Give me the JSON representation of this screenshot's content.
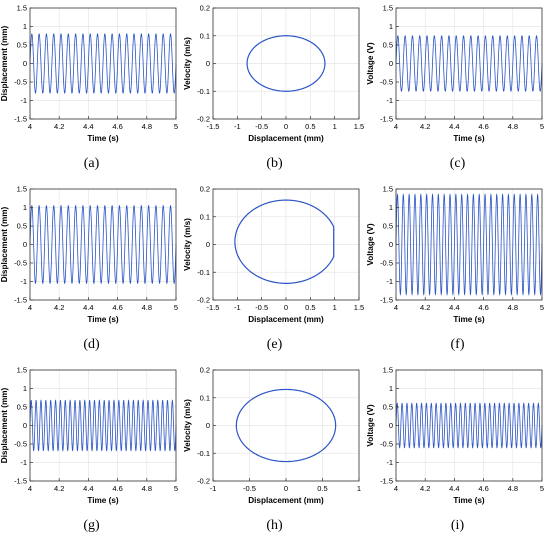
{
  "colors": {
    "line": "#2b55c6",
    "grid": "#e6e6e6",
    "axis": "#333333"
  },
  "chart_data": [
    {
      "panel": "a",
      "caption": "(a)",
      "type": "line",
      "title": "",
      "xlabel": "Time (s)",
      "ylabel": "Displacement (mm)",
      "xlim": [
        4,
        5
      ],
      "ylim": [
        -1.5,
        1.5
      ],
      "xticks": [
        4,
        4.2,
        4.4,
        4.6,
        4.8,
        5
      ],
      "xtick_labels": [
        "4",
        "4.2",
        "4.4",
        "4.6",
        "4.8",
        "5"
      ],
      "yticks": [
        -1.5,
        -1,
        -0.5,
        0,
        0.5,
        1,
        1.5
      ],
      "ytick_labels": [
        "-1.5",
        "-1",
        "-0.5",
        "0",
        "0.5",
        "1",
        "1.5"
      ],
      "grid": true,
      "series": [
        {
          "kind": "sine",
          "amplitude": 0.8,
          "cycles": 20
        }
      ]
    },
    {
      "panel": "b",
      "caption": "(b)",
      "type": "line",
      "title": "",
      "xlabel": "Displacement (mm)",
      "ylabel": "Velocity (m/s)",
      "xlim": [
        -1.5,
        1.5
      ],
      "ylim": [
        -0.2,
        0.2
      ],
      "xticks": [
        -1.5,
        -1,
        -0.5,
        0,
        0.5,
        1,
        1.5
      ],
      "xtick_labels": [
        "-1.5",
        "-1",
        "-0.5",
        "0",
        "0.5",
        "1",
        "1.5"
      ],
      "yticks": [
        -0.2,
        -0.1,
        0,
        0.1,
        0.2
      ],
      "ytick_labels": [
        "-0.2",
        "-0.1",
        "0",
        "0.1",
        "0.2"
      ],
      "grid": true,
      "series": [
        {
          "kind": "orbit",
          "x_amplitude": 0.8,
          "y_amplitude": 0.1
        }
      ]
    },
    {
      "panel": "c",
      "caption": "(c)",
      "type": "line",
      "title": "",
      "xlabel": "Time (s)",
      "ylabel": "Voltage (V)",
      "xlim": [
        4,
        5
      ],
      "ylim": [
        -1.5,
        1.5
      ],
      "xticks": [
        4,
        4.2,
        4.4,
        4.6,
        4.8,
        5
      ],
      "xtick_labels": [
        "4",
        "4.2",
        "4.4",
        "4.6",
        "4.8",
        "5"
      ],
      "yticks": [
        -1.5,
        -1,
        -0.5,
        0,
        0.5,
        1,
        1.5
      ],
      "ytick_labels": [
        "-1.5",
        "-1",
        "-0.5",
        "0",
        "0.5",
        "1",
        "1.5"
      ],
      "grid": true,
      "series": [
        {
          "kind": "sine",
          "amplitude": 0.75,
          "cycles": 20
        }
      ]
    },
    {
      "panel": "d",
      "caption": "(d)",
      "type": "line",
      "title": "",
      "xlabel": "Time (s)",
      "ylabel": "Displacement (mm)",
      "xlim": [
        4,
        5
      ],
      "ylim": [
        -1.5,
        1.5
      ],
      "xticks": [
        4,
        4.2,
        4.4,
        4.6,
        4.8,
        5
      ],
      "xtick_labels": [
        "4",
        "4.2",
        "4.4",
        "4.6",
        "4.8",
        "5"
      ],
      "yticks": [
        -1.5,
        -1,
        -0.5,
        0,
        0.5,
        1,
        1.5
      ],
      "ytick_labels": [
        "-1.5",
        "-1",
        "-0.5",
        "0",
        "0.5",
        "1",
        "1.5"
      ],
      "grid": true,
      "series": [
        {
          "kind": "sine",
          "amplitude": 1.05,
          "cycles": 20
        }
      ]
    },
    {
      "panel": "e",
      "caption": "(e)",
      "type": "line",
      "title": "",
      "xlabel": "Displacement (mm)",
      "ylabel": "Velocity (m/s)",
      "xlim": [
        -1.5,
        1.5
      ],
      "ylim": [
        -0.2,
        0.2
      ],
      "xticks": [
        -1.5,
        -1,
        -0.5,
        0,
        0.5,
        1,
        1.5
      ],
      "xtick_labels": [
        "-1.5",
        "-1",
        "-0.5",
        "0",
        "0.5",
        "1",
        "1.5"
      ],
      "yticks": [
        -0.2,
        -0.1,
        0,
        0.1,
        0.2
      ],
      "ytick_labels": [
        "-0.2",
        "-0.1",
        "0",
        "0.1",
        "0.2"
      ],
      "grid": true,
      "series": [
        {
          "kind": "orbit",
          "x_amplitude": 1.05,
          "y_amplitude": 0.15,
          "y_offset": 0.01,
          "x_clip": 0.98
        }
      ]
    },
    {
      "panel": "f",
      "caption": "(f)",
      "type": "line",
      "title": "",
      "xlabel": "Time (s)",
      "ylabel": "Voltage (V)",
      "xlim": [
        4,
        5
      ],
      "ylim": [
        -1.5,
        1.5
      ],
      "xticks": [
        4,
        4.2,
        4.4,
        4.6,
        4.8,
        5
      ],
      "xtick_labels": [
        "4",
        "4.2",
        "4.4",
        "4.6",
        "4.8",
        "5"
      ],
      "yticks": [
        -1.5,
        -1,
        -0.5,
        0,
        0.5,
        1,
        1.5
      ],
      "ytick_labels": [
        "-1.5",
        "-1",
        "-0.5",
        "0",
        "0.5",
        "1",
        "1.5"
      ],
      "grid": true,
      "series": [
        {
          "kind": "sine",
          "amplitude": 1.35,
          "cycles": 25
        }
      ]
    },
    {
      "panel": "g",
      "caption": "(g)",
      "type": "line",
      "title": "",
      "xlabel": "Time (s)",
      "ylabel": "Displacement (mm)",
      "xlim": [
        4,
        5
      ],
      "ylim": [
        -1.5,
        1.5
      ],
      "xticks": [
        4,
        4.2,
        4.4,
        4.6,
        4.8,
        5
      ],
      "xtick_labels": [
        "4",
        "4.2",
        "4.4",
        "4.6",
        "4.8",
        "5"
      ],
      "yticks": [
        -1.5,
        -1,
        -0.5,
        0,
        0.5,
        1,
        1.5
      ],
      "ytick_labels": [
        "-1.5",
        "-1",
        "-0.5",
        "0",
        "0.5",
        "1",
        "1.5"
      ],
      "grid": true,
      "series": [
        {
          "kind": "sine",
          "amplitude": 0.68,
          "cycles": 30
        }
      ]
    },
    {
      "panel": "h",
      "caption": "(h)",
      "type": "line",
      "title": "",
      "xlabel": "Displacement (mm)",
      "ylabel": "Velocity (m/s)",
      "xlim": [
        -1,
        1
      ],
      "ylim": [
        -0.2,
        0.2
      ],
      "xticks": [
        -1,
        -0.5,
        0,
        0.5,
        1
      ],
      "xtick_labels": [
        "-1",
        "-0.5",
        "0",
        "0.5",
        "1"
      ],
      "yticks": [
        -0.2,
        -0.1,
        0,
        0.1,
        0.2
      ],
      "ytick_labels": [
        "-0.2",
        "-0.1",
        "0",
        "0.1",
        "0.2"
      ],
      "grid": true,
      "series": [
        {
          "kind": "orbit",
          "x_amplitude": 0.68,
          "y_amplitude": 0.13
        }
      ]
    },
    {
      "panel": "i",
      "caption": "(i)",
      "type": "line",
      "title": "",
      "xlabel": "Time (s)",
      "ylabel": "Voltage (V)",
      "xlim": [
        4,
        5
      ],
      "ylim": [
        -1.5,
        1.5
      ],
      "xticks": [
        4,
        4.2,
        4.4,
        4.6,
        4.8,
        5
      ],
      "xtick_labels": [
        "4",
        "4.2",
        "4.4",
        "4.6",
        "4.8",
        "5"
      ],
      "yticks": [
        -1.5,
        -1,
        -0.5,
        0,
        0.5,
        1,
        1.5
      ],
      "ytick_labels": [
        "-1.5",
        "-1",
        "-0.5",
        "0",
        "0.5",
        "1",
        "1.5"
      ],
      "grid": true,
      "series": [
        {
          "kind": "sine",
          "amplitude": 0.6,
          "cycles": 30
        }
      ]
    }
  ]
}
